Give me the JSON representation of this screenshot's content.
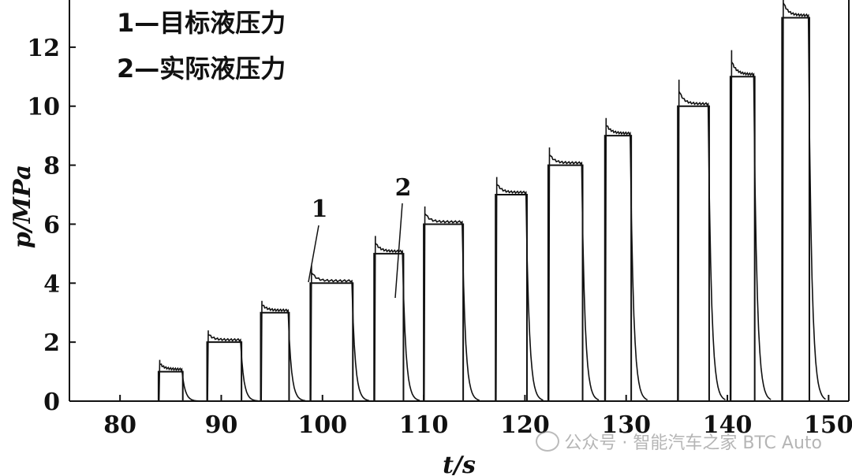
{
  "chart_data": {
    "type": "line",
    "xlabel": "t/s",
    "ylabel": "p/MPa",
    "xlim": [
      75,
      152
    ],
    "ylim": [
      0,
      13.6
    ],
    "xticks": [
      80,
      90,
      100,
      110,
      120,
      130,
      140,
      150
    ],
    "yticks": [
      0,
      2,
      4,
      6,
      8,
      10,
      12
    ],
    "grid": false,
    "legend": {
      "placement": "top-left",
      "entries": [
        "1—目标液压力",
        "2—实际液压力"
      ]
    },
    "callouts": [
      "1",
      "2"
    ],
    "pulses": [
      {
        "start": 83.8,
        "end": 86.2,
        "level": 1
      },
      {
        "start": 88.6,
        "end": 92.0,
        "level": 2
      },
      {
        "start": 93.9,
        "end": 96.7,
        "level": 3
      },
      {
        "start": 98.8,
        "end": 103.0,
        "level": 4
      },
      {
        "start": 105.1,
        "end": 108.0,
        "level": 5
      },
      {
        "start": 110.0,
        "end": 113.9,
        "level": 6
      },
      {
        "start": 117.1,
        "end": 120.2,
        "level": 7
      },
      {
        "start": 122.3,
        "end": 125.7,
        "level": 8
      },
      {
        "start": 127.9,
        "end": 130.5,
        "level": 9
      },
      {
        "start": 135.1,
        "end": 138.2,
        "level": 10
      },
      {
        "start": 140.3,
        "end": 142.7,
        "level": 11
      },
      {
        "start": 145.4,
        "end": 148.1,
        "level": 13
      }
    ],
    "series": [
      {
        "name": "目标液压力",
        "id": "1"
      },
      {
        "name": "实际液压力",
        "id": "2"
      }
    ]
  },
  "watermark": {
    "text": "公众号 · 智能汽车之家 BTC Auto"
  }
}
